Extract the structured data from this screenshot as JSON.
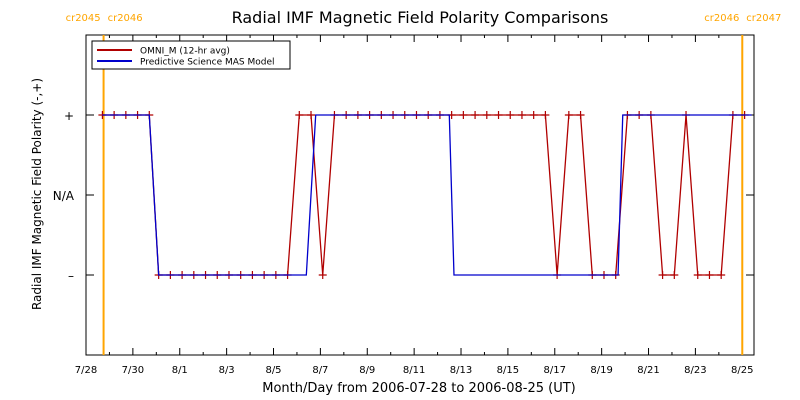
{
  "chart_data": {
    "type": "line",
    "title": "Radial IMF Magnetic Field Polarity Comparisons",
    "xlabel": "Month/Day from 2006-07-28 to 2006-08-25 (UT)",
    "ylabel": "Radial IMF Magnetic Field Polarity (-,+)",
    "x_unit": "day",
    "xlim": [
      0,
      28.5
    ],
    "ylim": [
      -2,
      2
    ],
    "x_ticks": [
      {
        "x": 0,
        "label": "7/28"
      },
      {
        "x": 2,
        "label": "7/30"
      },
      {
        "x": 4,
        "label": "8/1"
      },
      {
        "x": 6,
        "label": "8/3"
      },
      {
        "x": 8,
        "label": "8/5"
      },
      {
        "x": 10,
        "label": "8/7"
      },
      {
        "x": 12,
        "label": "8/9"
      },
      {
        "x": 14,
        "label": "8/11"
      },
      {
        "x": 16,
        "label": "8/13"
      },
      {
        "x": 18,
        "label": "8/15"
      },
      {
        "x": 20,
        "label": "8/17"
      },
      {
        "x": 22,
        "label": "8/19"
      },
      {
        "x": 24,
        "label": "8/21"
      },
      {
        "x": 26,
        "label": "8/23"
      },
      {
        "x": 28,
        "label": "8/25"
      }
    ],
    "y_ticks": [
      {
        "y": 1,
        "label": "+"
      },
      {
        "y": 0,
        "label": "N/A"
      },
      {
        "y": -1,
        "label": "–"
      }
    ],
    "carrington_rotations": [
      {
        "x": 0.75,
        "labels": [
          "cr2045",
          "cr2046"
        ],
        "side": "left"
      },
      {
        "x": 28.0,
        "labels": [
          "cr2046",
          "cr2047"
        ],
        "side": "right"
      }
    ],
    "rotation_line_color": "#ffa500",
    "grid": false,
    "legend_position": "top-left",
    "series": [
      {
        "name": "OMNI_M (12-hr avg)",
        "color": "#b00000",
        "marker": "plus",
        "x": [
          0.7,
          1.2,
          1.7,
          2.2,
          2.7,
          3.1,
          3.6,
          4.1,
          4.6,
          5.1,
          5.6,
          6.1,
          6.6,
          7.1,
          7.6,
          8.1,
          8.6,
          9.1,
          9.6,
          10.1,
          10.6,
          11.1,
          11.6,
          12.1,
          12.6,
          13.1,
          13.6,
          14.1,
          14.6,
          15.1,
          15.6,
          16.1,
          16.6,
          17.1,
          17.6,
          18.1,
          18.6,
          19.1,
          19.6,
          20.1,
          20.6,
          21.1,
          21.6,
          22.1,
          22.6,
          23.1,
          23.6,
          24.1,
          24.6,
          25.1,
          25.6,
          26.1,
          26.6,
          27.1,
          27.6,
          28.1
        ],
        "y": [
          1,
          1,
          1,
          1,
          1,
          -1,
          -1,
          -1,
          -1,
          -1,
          -1,
          -1,
          -1,
          -1,
          -1,
          -1,
          -1,
          1,
          1,
          -1,
          1,
          1,
          1,
          1,
          1,
          1,
          1,
          1,
          1,
          1,
          1,
          1,
          1,
          1,
          1,
          1,
          1,
          1,
          1,
          -1,
          1,
          1,
          -1,
          -1,
          -1,
          1,
          1,
          1,
          -1,
          -1,
          1,
          -1,
          -1,
          -1,
          1,
          1
        ]
      },
      {
        "name": "Predictive Science MAS Model",
        "color": "#0000cc",
        "marker": "none",
        "x": [
          0.7,
          2.7,
          3.1,
          9.4,
          9.8,
          15.5,
          15.7,
          22.7,
          22.9,
          28.4
        ],
        "y": [
          1,
          1,
          -1,
          -1,
          1,
          1,
          -1,
          -1,
          1,
          1
        ]
      }
    ]
  }
}
